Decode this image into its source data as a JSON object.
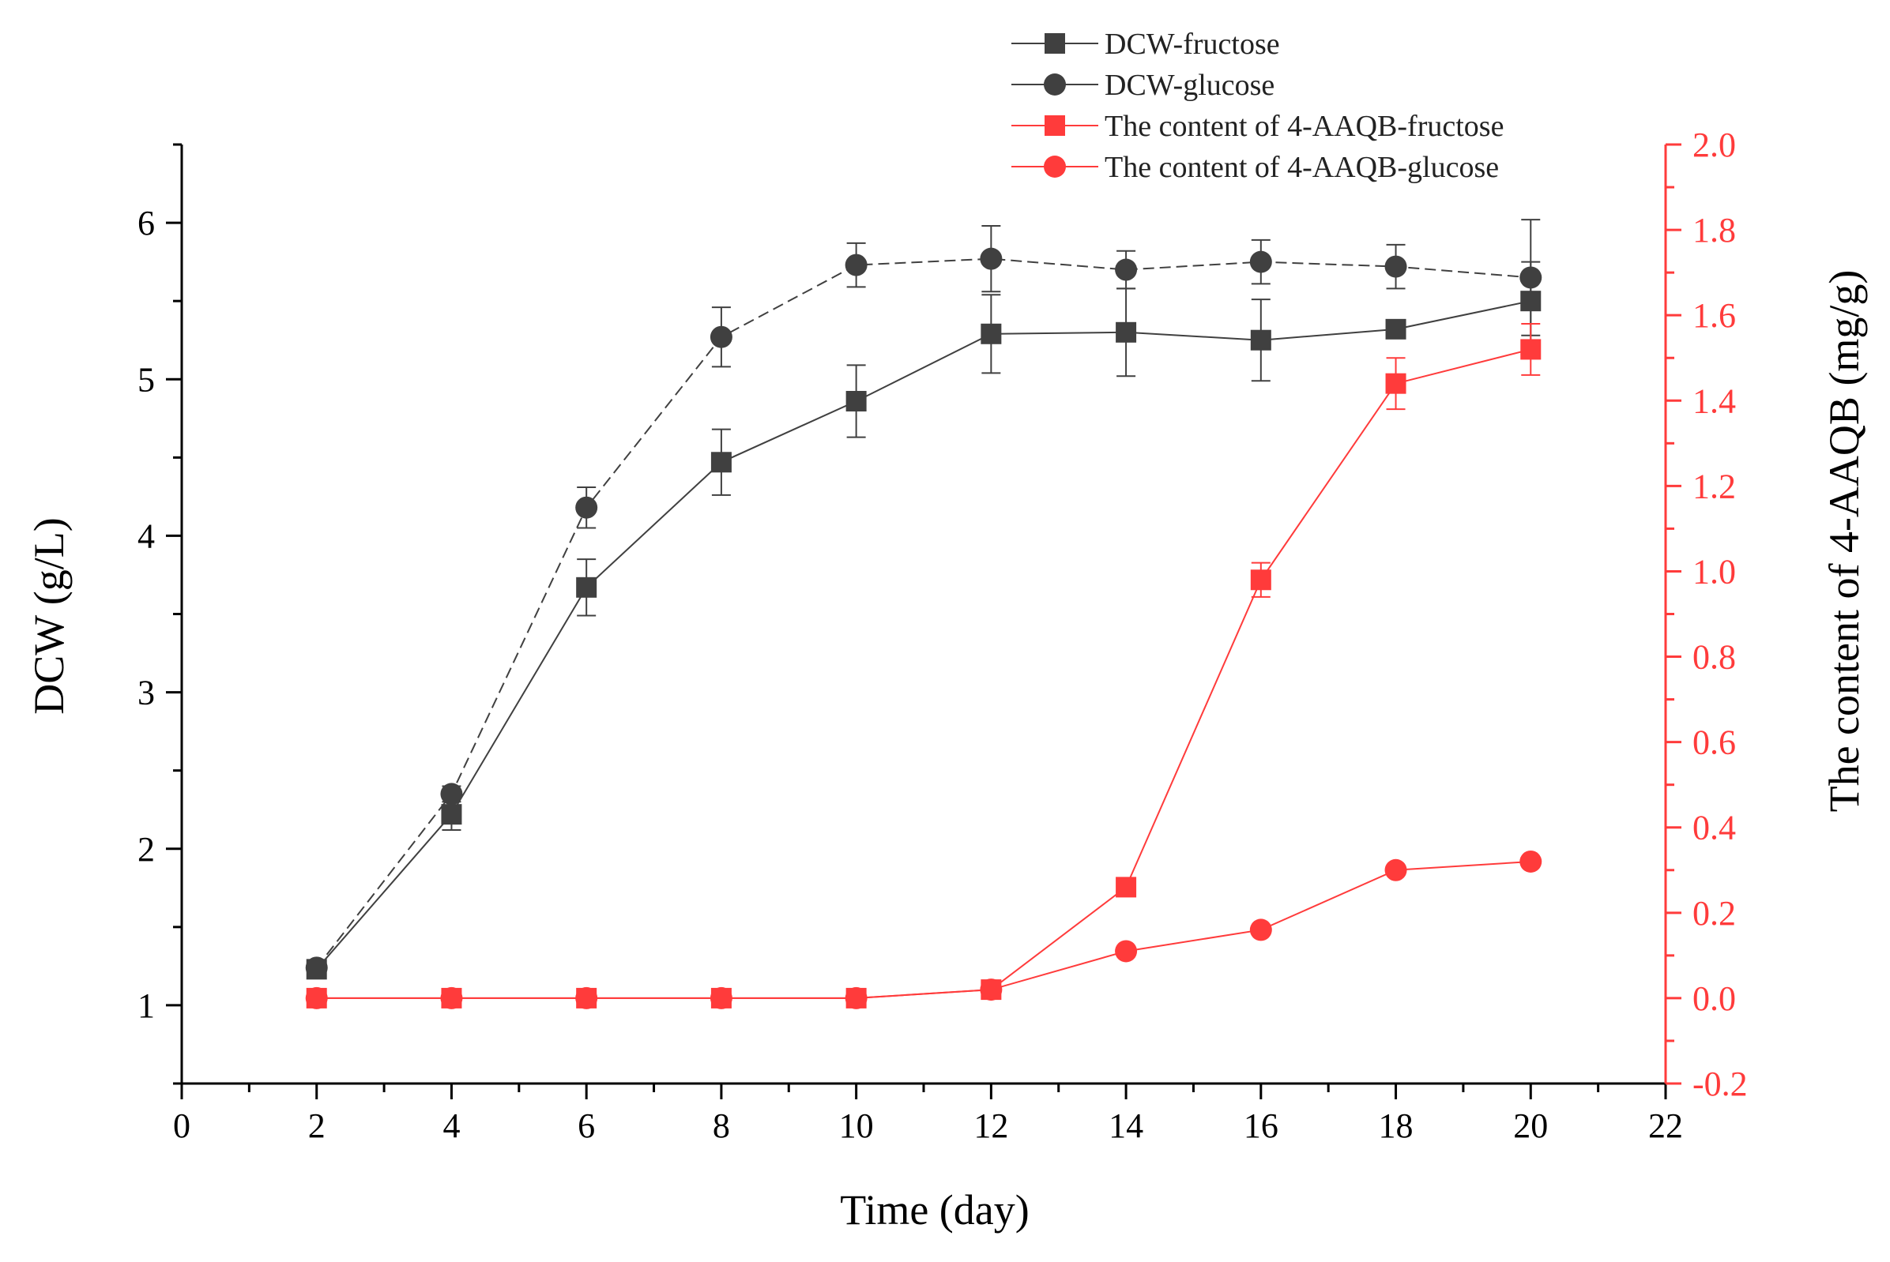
{
  "colors": {
    "black_series": "#404040",
    "red_series": "#ff3b3b",
    "axis": "#000000",
    "right_axis": "#ff3b3b"
  },
  "chart_data": {
    "type": "line",
    "title": "",
    "xlabel": "Time (day)",
    "ylabel": "DCW (g/L)",
    "y2label": "The content of 4-AAQB (mg/g)",
    "xlim": [
      0,
      22
    ],
    "ylim": [
      0.5,
      6.5
    ],
    "y2lim": [
      -0.2,
      2.0
    ],
    "x_ticks": [
      0,
      2,
      4,
      6,
      8,
      10,
      12,
      14,
      16,
      18,
      20,
      22
    ],
    "x_tick_labels": [
      "0",
      "2",
      "4",
      "6",
      "8",
      "10",
      "12",
      "14",
      "16",
      "18",
      "20",
      "22"
    ],
    "y_ticks": [
      1,
      2,
      3,
      4,
      5,
      6
    ],
    "y_tick_labels": [
      "1",
      "2",
      "3",
      "4",
      "5",
      "6"
    ],
    "y2_ticks": [
      -0.2,
      0.0,
      0.2,
      0.4,
      0.6,
      0.8,
      1.0,
      1.2,
      1.4,
      1.6,
      1.8,
      2.0
    ],
    "y2_tick_labels": [
      "-0.2",
      "0.0",
      "0.2",
      "0.4",
      "0.6",
      "0.8",
      "1.0",
      "1.2",
      "1.4",
      "1.6",
      "1.8",
      "2.0"
    ],
    "legend_position": "top-right",
    "series": [
      {
        "name": "DCW-fructose",
        "axis": "left",
        "marker": "square",
        "color": "#404040",
        "dash": "solid",
        "x": [
          2,
          4,
          6,
          8,
          10,
          12,
          14,
          16,
          18,
          20
        ],
        "values": [
          1.23,
          2.22,
          3.67,
          4.47,
          4.86,
          5.29,
          5.3,
          5.25,
          5.32,
          5.5
        ],
        "errors": [
          0.04,
          0.1,
          0.18,
          0.21,
          0.23,
          0.25,
          0.28,
          0.26,
          0.05,
          0.25
        ]
      },
      {
        "name": "DCW-glucose",
        "axis": "left",
        "marker": "circle",
        "color": "#404040",
        "dash": "dashed",
        "x": [
          2,
          4,
          6,
          8,
          10,
          12,
          14,
          16,
          18,
          20
        ],
        "values": [
          1.24,
          2.35,
          4.18,
          5.27,
          5.73,
          5.77,
          5.7,
          5.75,
          5.72,
          5.65
        ],
        "errors": [
          0.03,
          0.05,
          0.13,
          0.19,
          0.14,
          0.21,
          0.12,
          0.14,
          0.14,
          0.37
        ]
      },
      {
        "name": "The content of 4-AAQB-fructose",
        "axis": "right",
        "marker": "square",
        "color": "#ff3b3b",
        "dash": "solid",
        "x": [
          2,
          4,
          6,
          8,
          10,
          12,
          14,
          16,
          18,
          20
        ],
        "values": [
          0.0,
          0.0,
          0.0,
          0.0,
          0.0,
          0.02,
          0.26,
          0.98,
          1.44,
          1.52
        ],
        "errors": [
          0,
          0,
          0,
          0,
          0,
          0.01,
          0.01,
          0.04,
          0.06,
          0.06
        ]
      },
      {
        "name": "The content of 4-AAQB-glucose",
        "axis": "right",
        "marker": "circle",
        "color": "#ff3b3b",
        "dash": "solid",
        "x": [
          2,
          4,
          6,
          8,
          10,
          12,
          14,
          16,
          18,
          20
        ],
        "values": [
          0.0,
          0.0,
          0.0,
          0.0,
          0.0,
          0.02,
          0.11,
          0.16,
          0.3,
          0.32
        ],
        "errors": [
          0,
          0,
          0,
          0,
          0,
          0,
          0,
          0,
          0,
          0
        ]
      }
    ]
  }
}
